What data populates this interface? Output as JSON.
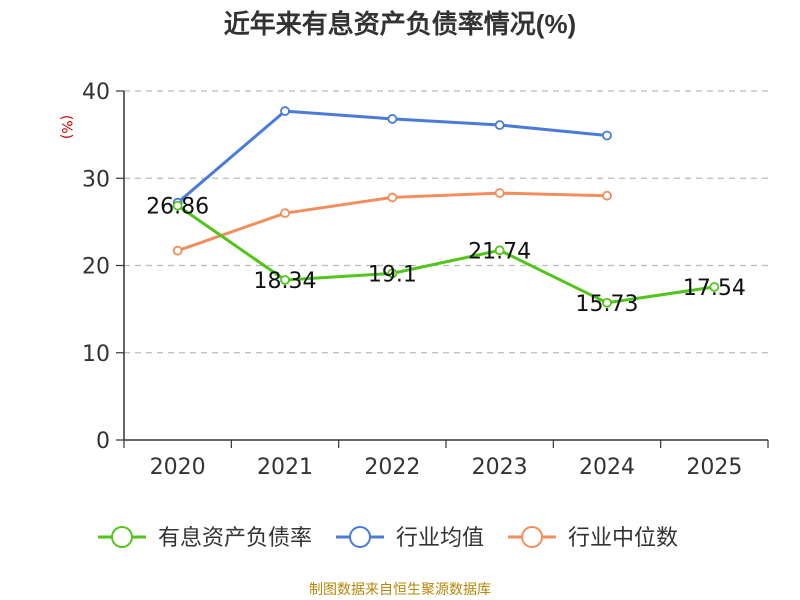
{
  "chart_data": {
    "type": "line",
    "title": "近年来有息资产负债率情况(%)",
    "ylabel": "(%)",
    "xlabel": "",
    "categories": [
      "2020",
      "2021",
      "2022",
      "2023",
      "2024",
      "2025"
    ],
    "ylim": [
      0,
      40
    ],
    "yticks": [
      0,
      10,
      20,
      30,
      40
    ],
    "grid": true,
    "legend_position": "bottom",
    "series": [
      {
        "name": "有息资产负债率",
        "color": "#52c41a",
        "values": [
          26.86,
          18.34,
          19.1,
          21.74,
          15.73,
          17.54
        ],
        "labels": [
          "26.86",
          "18.34",
          "19.1",
          "21.74",
          "15.73",
          "17.54"
        ]
      },
      {
        "name": "行业均值",
        "color": "#4a7bd6",
        "values": [
          27.2,
          37.7,
          36.8,
          36.1,
          34.9,
          null
        ]
      },
      {
        "name": "行业中位数",
        "color": "#f28e5c",
        "values": [
          21.7,
          26.0,
          27.8,
          28.3,
          28.0,
          null
        ]
      }
    ]
  },
  "footer": {
    "source": "制图数据来自恒生聚源数据库"
  }
}
